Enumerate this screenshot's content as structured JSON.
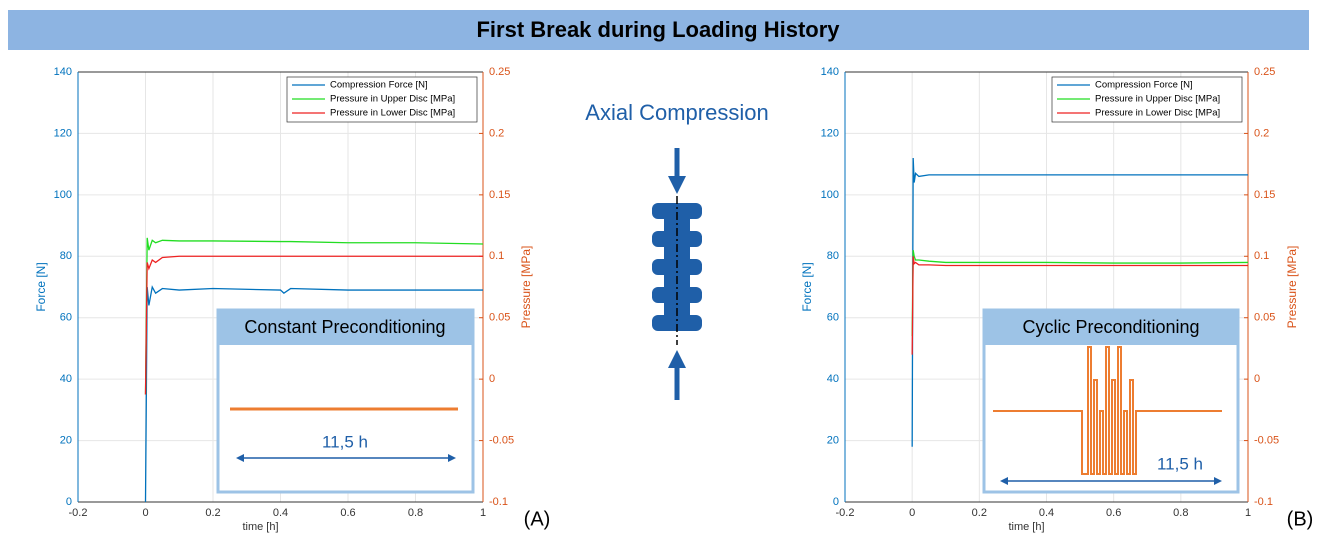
{
  "title": "First Break during Loading History",
  "center_label": "Axial Compression",
  "chart_data": [
    {
      "type": "line",
      "panel_label": "(A)",
      "xlabel": "time [h]",
      "ylabel": "Force [N]",
      "y2label": "Pressure [MPa]",
      "xlim": [
        -0.2,
        1
      ],
      "xticks": [
        -0.2,
        0,
        0.2,
        0.4,
        0.6,
        0.8,
        1
      ],
      "ylim": [
        0,
        140
      ],
      "yticks": [
        0,
        20,
        40,
        60,
        80,
        100,
        120,
        140
      ],
      "y2lim": [
        -0.1,
        0.25
      ],
      "y2ticks": [
        -0.1,
        -0.05,
        0,
        0.05,
        0.1,
        0.15,
        0.2,
        0.25
      ],
      "grid": true,
      "legend": "upper right",
      "x": [
        0,
        0.005,
        0.01,
        0.02,
        0.03,
        0.05,
        0.1,
        0.2,
        0.4,
        0.41,
        0.43,
        0.6,
        0.8,
        1
      ],
      "series": [
        {
          "name": "Compression Force [N]",
          "color": "#0072bd",
          "values": [
            0,
            70,
            64,
            70,
            68,
            69.5,
            69,
            69.5,
            69,
            68,
            69.5,
            69,
            69,
            69
          ]
        },
        {
          "name": "Pressure in Upper Disc [MPa]",
          "color": "#22dd22",
          "axis": "y2",
          "values": [
            -0.0125,
            0.115,
            0.105,
            0.113,
            0.111,
            0.113,
            0.1125,
            0.1125,
            0.112,
            0.112,
            0.112,
            0.111,
            0.111,
            0.11
          ]
        },
        {
          "name": "Pressure in Lower Disc [MPa]",
          "color": "#ee2222",
          "axis": "y2",
          "values": [
            -0.0125,
            0.095,
            0.09,
            0.097,
            0.095,
            0.099,
            0.1,
            0.1,
            0.1,
            0.1,
            0.1,
            0.1,
            0.1,
            0.1
          ]
        }
      ],
      "inset_title": "Constant Preconditioning",
      "inset_duration": "11,5 h"
    },
    {
      "type": "line",
      "panel_label": "(B)",
      "xlabel": "time [h]",
      "ylabel": "Force [N]",
      "y2label": "Pressure [MPa]",
      "xlim": [
        -0.2,
        1
      ],
      "xticks": [
        -0.2,
        0,
        0.2,
        0.4,
        0.6,
        0.8,
        1
      ],
      "ylim": [
        0,
        140
      ],
      "yticks": [
        0,
        20,
        40,
        60,
        80,
        100,
        120,
        140
      ],
      "y2lim": [
        -0.1,
        0.25
      ],
      "y2ticks": [
        -0.1,
        -0.05,
        0,
        0.05,
        0.1,
        0.15,
        0.2,
        0.25
      ],
      "grid": true,
      "legend": "upper right",
      "x": [
        0,
        0.003,
        0.006,
        0.01,
        0.02,
        0.05,
        0.1,
        0.2,
        0.4,
        0.6,
        0.8,
        1
      ],
      "series": [
        {
          "name": "Compression Force [N]",
          "color": "#0072bd",
          "values": [
            18,
            112,
            104,
            107,
            106,
            106.5,
            106.5,
            106.5,
            106.5,
            106.5,
            106.5,
            106.5
          ]
        },
        {
          "name": "Pressure in Upper Disc [MPa]",
          "color": "#22dd22",
          "axis": "y2",
          "values": [
            0.035,
            0.105,
            0.1,
            0.097,
            0.097,
            0.096,
            0.095,
            0.095,
            0.095,
            0.0945,
            0.0945,
            0.095
          ]
        },
        {
          "name": "Pressure in Lower Disc [MPa]",
          "color": "#ee2222",
          "axis": "y2",
          "values": [
            0.02,
            0.1,
            0.094,
            0.095,
            0.093,
            0.093,
            0.0925,
            0.0925,
            0.0925,
            0.0925,
            0.0925,
            0.0925
          ]
        }
      ],
      "inset_title": "Cyclic Preconditioning",
      "inset_duration": "11,5 h"
    }
  ]
}
